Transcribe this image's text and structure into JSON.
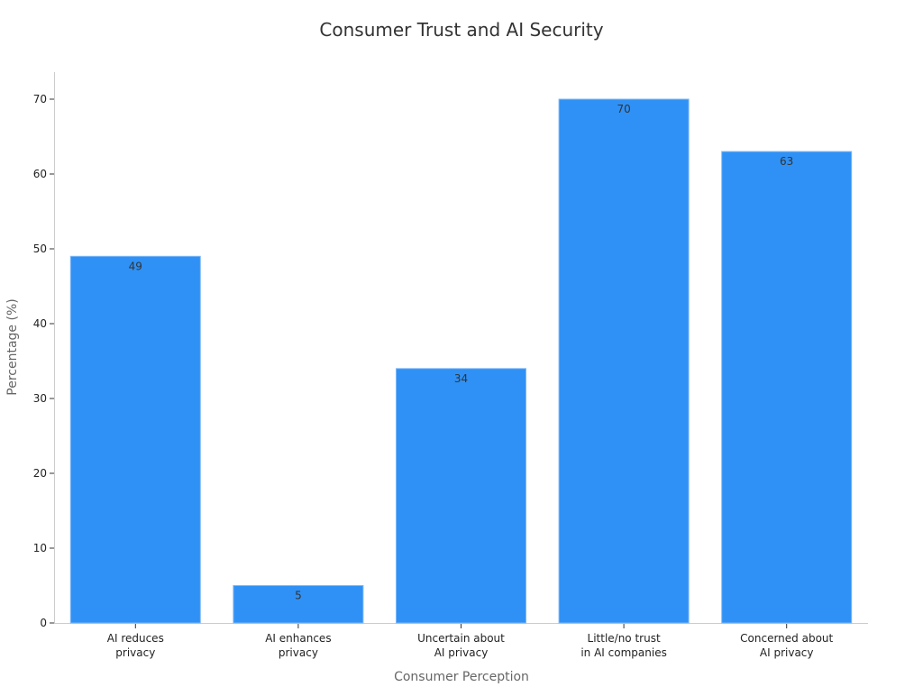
{
  "chart_data": {
    "type": "bar",
    "title": "Consumer Trust and AI Security",
    "xlabel": "Consumer Perception",
    "ylabel": "Percentage (%)",
    "categories": [
      [
        "AI reduces",
        "privacy"
      ],
      [
        "AI enhances",
        "privacy"
      ],
      [
        "Uncertain about",
        "AI privacy"
      ],
      [
        "Little/no trust",
        "in AI companies"
      ],
      [
        "Concerned about",
        "AI privacy"
      ]
    ],
    "values": [
      49,
      5,
      34,
      70,
      63
    ],
    "data_labels": [
      "49",
      "5",
      "34",
      "70",
      "63"
    ],
    "yticks": [
      0,
      10,
      20,
      30,
      40,
      50,
      60,
      70
    ],
    "ylim": [
      0,
      73.5
    ],
    "grid": false,
    "bar_color": "#2F91F5"
  }
}
